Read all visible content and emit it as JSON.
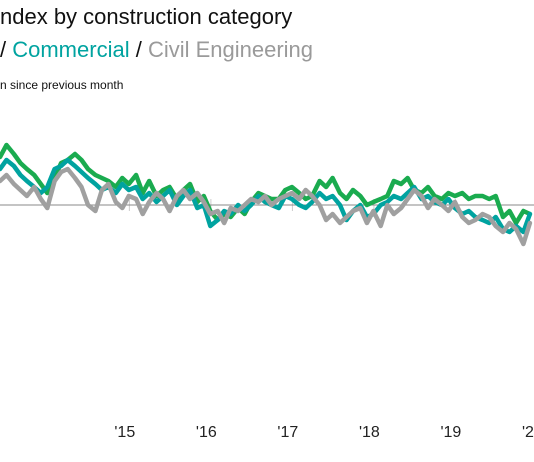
{
  "title": "ndex by construction category",
  "subtitle": {
    "sep_left": "/ ",
    "series_1": "Commercial",
    "sep_mid": " / ",
    "series_2": "Civil Engineering"
  },
  "note": "n since previous month",
  "colors": {
    "green": "#1aab4f",
    "teal": "#00a3a0",
    "gray": "#a0a0a0",
    "zero_line": "#888888",
    "ticks": "#cccccc"
  },
  "chart_data": {
    "type": "line",
    "x_ticks": [
      {
        "label": "'15",
        "x": 2015.0
      },
      {
        "label": "'16",
        "x": 2016.0
      },
      {
        "label": "'17",
        "x": 2017.0
      },
      {
        "label": "'18",
        "x": 2018.0
      },
      {
        "label": "'19",
        "x": 2019.0
      },
      {
        "label": "'2",
        "x": 2020.0
      }
    ],
    "xlim": [
      2013.45,
      2020.0
    ],
    "ylim": [
      -6.5,
      3.5
    ],
    "zero_line": true,
    "series": [
      {
        "color_key": "green",
        "x": [
          2013.45,
          2013.53,
          2013.62,
          2013.7,
          2013.78,
          2013.87,
          2013.95,
          2014.03,
          2014.12,
          2014.2,
          2014.28,
          2014.37,
          2014.45,
          2014.53,
          2014.62,
          2014.7,
          2014.78,
          2014.87,
          2014.95,
          2015.03,
          2015.12,
          2015.2,
          2015.28,
          2015.37,
          2015.45,
          2015.53,
          2015.62,
          2015.7,
          2015.78,
          2015.87,
          2015.95,
          2016.03,
          2016.12,
          2016.2,
          2016.28,
          2016.37,
          2016.45,
          2016.53,
          2016.62,
          2016.7,
          2016.78,
          2016.87,
          2016.95,
          2017.03,
          2017.12,
          2017.2,
          2017.28,
          2017.37,
          2017.45,
          2017.53,
          2017.62,
          2017.7,
          2017.78,
          2017.87,
          2017.95,
          2018.03,
          2018.12,
          2018.2,
          2018.28,
          2018.37,
          2018.45,
          2018.53,
          2018.62,
          2018.7,
          2018.78,
          2018.87,
          2018.95,
          2019.03,
          2019.12,
          2019.2,
          2019.28,
          2019.37,
          2019.45,
          2019.53,
          2019.62,
          2019.7,
          2019.78,
          2019.87,
          2019.95
        ],
        "values": [
          1.6,
          2.0,
          1.7,
          1.4,
          1.2,
          1.0,
          0.7,
          0.4,
          0.9,
          1.4,
          1.5,
          1.7,
          1.5,
          1.2,
          1.0,
          0.9,
          0.8,
          0.6,
          0.9,
          0.7,
          1.0,
          0.4,
          0.8,
          0.3,
          0.5,
          0.6,
          0.2,
          0.5,
          0.7,
          0.1,
          0.3,
          -0.2,
          -0.5,
          -0.3,
          -0.4,
          -0.1,
          -0.3,
          0.1,
          0.4,
          0.3,
          0.2,
          0.2,
          0.5,
          0.6,
          0.4,
          0.2,
          0.3,
          0.8,
          0.6,
          0.9,
          0.4,
          0.2,
          0.5,
          0.3,
          0.0,
          0.1,
          0.2,
          0.3,
          0.8,
          0.7,
          0.9,
          0.5,
          0.4,
          0.6,
          0.3,
          0.2,
          0.4,
          0.3,
          0.4,
          0.2,
          0.3,
          0.3,
          0.2,
          0.3,
          -0.4,
          -0.2,
          -0.6,
          -0.2,
          -0.3
        ]
      },
      {
        "color_key": "teal",
        "x": [
          2013.45,
          2013.53,
          2013.62,
          2013.7,
          2013.78,
          2013.87,
          2013.95,
          2014.03,
          2014.12,
          2014.2,
          2014.28,
          2014.37,
          2014.45,
          2014.53,
          2014.62,
          2014.7,
          2014.78,
          2014.87,
          2014.95,
          2015.03,
          2015.12,
          2015.2,
          2015.28,
          2015.37,
          2015.45,
          2015.53,
          2015.62,
          2015.7,
          2015.78,
          2015.87,
          2015.95,
          2016.03,
          2016.12,
          2016.2,
          2016.28,
          2016.37,
          2016.45,
          2016.53,
          2016.62,
          2016.7,
          2016.78,
          2016.87,
          2016.95,
          2017.03,
          2017.12,
          2017.2,
          2017.28,
          2017.37,
          2017.45,
          2017.53,
          2017.62,
          2017.7,
          2017.78,
          2017.87,
          2017.95,
          2018.03,
          2018.12,
          2018.2,
          2018.28,
          2018.37,
          2018.45,
          2018.53,
          2018.62,
          2018.7,
          2018.78,
          2018.87,
          2018.95,
          2019.03,
          2019.12,
          2019.2,
          2019.28,
          2019.37,
          2019.45,
          2019.53,
          2019.62,
          2019.7,
          2019.78,
          2019.87,
          2019.95
        ],
        "values": [
          1.2,
          1.5,
          1.3,
          1.0,
          0.8,
          0.6,
          0.4,
          0.6,
          1.2,
          1.3,
          1.5,
          1.3,
          1.1,
          0.9,
          0.7,
          0.5,
          0.6,
          0.4,
          0.7,
          0.5,
          0.6,
          0.2,
          0.4,
          0.1,
          0.3,
          0.5,
          0.0,
          0.3,
          0.5,
          -0.1,
          0.0,
          -0.7,
          -0.5,
          -0.2,
          -0.3,
          0.0,
          -0.2,
          0.0,
          0.3,
          0.1,
          0.0,
          -0.1,
          0.3,
          0.2,
          0.0,
          -0.1,
          0.1,
          0.4,
          0.2,
          0.3,
          0.0,
          -0.5,
          -0.2,
          0.0,
          -0.4,
          -0.3,
          0.0,
          0.1,
          0.3,
          0.2,
          0.4,
          0.6,
          0.2,
          0.3,
          0.1,
          0.0,
          0.2,
          -0.1,
          -0.3,
          -0.2,
          -0.4,
          -0.5,
          -0.6,
          -0.4,
          -0.8,
          -0.9,
          -0.7,
          -0.9,
          -0.3
        ]
      },
      {
        "color_key": "gray",
        "x": [
          2013.45,
          2013.53,
          2013.62,
          2013.7,
          2013.78,
          2013.87,
          2013.95,
          2014.03,
          2014.12,
          2014.2,
          2014.28,
          2014.37,
          2014.45,
          2014.53,
          2014.62,
          2014.7,
          2014.78,
          2014.87,
          2014.95,
          2015.03,
          2015.12,
          2015.2,
          2015.28,
          2015.37,
          2015.45,
          2015.53,
          2015.62,
          2015.7,
          2015.78,
          2015.87,
          2015.95,
          2016.03,
          2016.12,
          2016.2,
          2016.28,
          2016.37,
          2016.45,
          2016.53,
          2016.62,
          2016.7,
          2016.78,
          2016.87,
          2016.95,
          2017.03,
          2017.12,
          2017.2,
          2017.28,
          2017.37,
          2017.45,
          2017.53,
          2017.62,
          2017.7,
          2017.78,
          2017.87,
          2017.95,
          2018.03,
          2018.12,
          2018.2,
          2018.28,
          2018.37,
          2018.45,
          2018.53,
          2018.62,
          2018.7,
          2018.78,
          2018.87,
          2018.95,
          2019.03,
          2019.12,
          2019.2,
          2019.28,
          2019.37,
          2019.45,
          2019.53,
          2019.62,
          2019.7,
          2019.78,
          2019.87,
          2019.95
        ],
        "values": [
          0.8,
          1.0,
          0.7,
          0.5,
          0.3,
          0.6,
          0.2,
          -0.1,
          0.8,
          1.1,
          1.2,
          0.9,
          0.6,
          0.0,
          -0.2,
          0.5,
          0.7,
          0.1,
          -0.1,
          0.3,
          0.2,
          -0.3,
          0.1,
          0.4,
          0.2,
          -0.2,
          0.3,
          0.5,
          0.2,
          0.4,
          0.1,
          -0.3,
          -0.2,
          -0.6,
          -0.1,
          -0.2,
          0.0,
          0.2,
          0.1,
          0.3,
          0.0,
          0.2,
          0.3,
          0.4,
          0.2,
          0.5,
          0.3,
          0.0,
          -0.5,
          -0.3,
          -0.6,
          -0.4,
          -0.2,
          -0.1,
          -0.6,
          -0.2,
          -0.7,
          0.0,
          -0.3,
          -0.1,
          0.2,
          0.5,
          0.3,
          -0.1,
          0.2,
          0.0,
          -0.2,
          0.1,
          -0.4,
          -0.6,
          -0.5,
          -0.3,
          -0.4,
          -0.7,
          -0.9,
          -0.6,
          -0.8,
          -1.3,
          -0.6
        ]
      }
    ]
  }
}
